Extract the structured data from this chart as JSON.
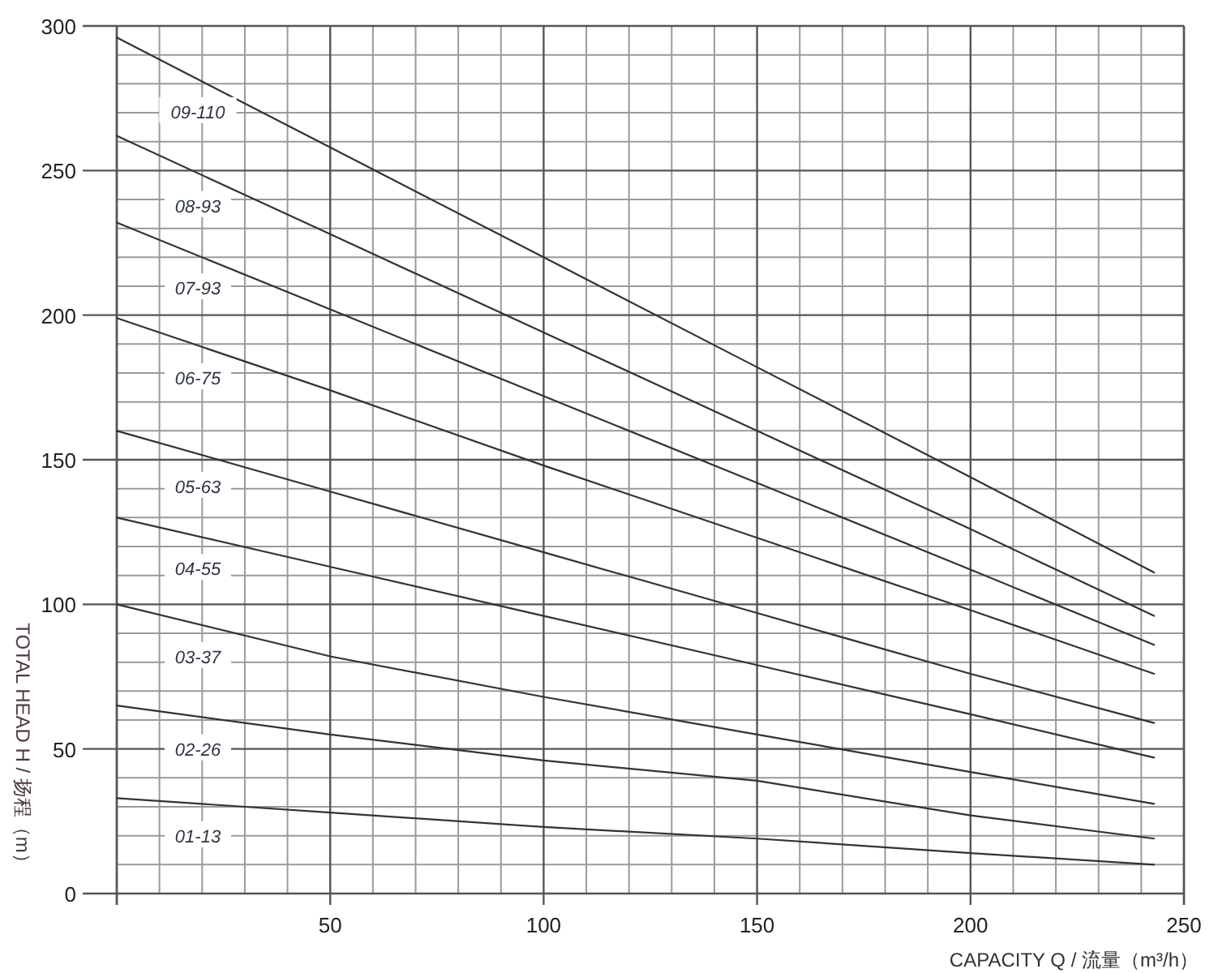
{
  "chart_data": {
    "type": "line",
    "xlabel": "CAPACITY Q / 流量（m³/h）",
    "ylabel": "TOTAL HEAD H / 扬程（m）",
    "x": [
      0,
      50,
      100,
      150,
      200,
      243
    ],
    "xlim": [
      0,
      250
    ],
    "xticks": [
      {
        "value": 0,
        "label": null
      },
      50,
      100,
      150,
      200,
      250
    ],
    "ylim": [
      0,
      300
    ],
    "yticks": [
      0,
      50,
      100,
      150,
      200,
      250,
      300
    ],
    "grid": true,
    "series": [
      {
        "name": "09-110",
        "color": "#333333",
        "values": [
          296,
          258,
          220,
          182,
          144,
          111
        ]
      },
      {
        "name": "08-93",
        "color": "#333333",
        "values": [
          262,
          228,
          194,
          160,
          126,
          96
        ]
      },
      {
        "name": "07-93",
        "color": "#333333",
        "values": [
          232,
          202,
          172,
          142,
          112,
          86
        ]
      },
      {
        "name": "06-75",
        "color": "#333333",
        "values": [
          199,
          174,
          148,
          123,
          98,
          76
        ]
      },
      {
        "name": "05-63",
        "color": "#333333",
        "values": [
          160,
          139,
          118,
          97,
          76,
          59
        ]
      },
      {
        "name": "04-55",
        "color": "#333333",
        "values": [
          130,
          113,
          96,
          79,
          62,
          47
        ]
      },
      {
        "name": "03-37",
        "color": "#333333",
        "values": [
          100,
          82,
          68,
          55,
          42,
          31
        ]
      },
      {
        "name": "02-26",
        "color": "#333333",
        "values": [
          65,
          55,
          46,
          39,
          27,
          19
        ]
      },
      {
        "name": "01-13",
        "color": "#333333",
        "values": [
          33,
          28,
          23,
          19,
          14,
          10
        ]
      }
    ]
  }
}
